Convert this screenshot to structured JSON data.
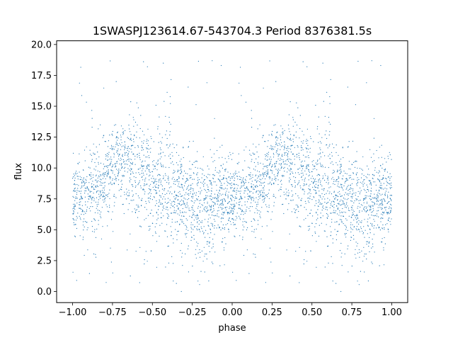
{
  "chart_data": {
    "type": "scatter",
    "title": "1SWASPJ123614.67-543704.3 Period 8376381.5s",
    "xlabel": "phase",
    "ylabel": "flux",
    "xlim": [
      -1.1,
      1.1
    ],
    "ylim": [
      -0.9,
      20.3
    ],
    "xticks": [
      -1.0,
      -0.75,
      -0.5,
      -0.25,
      0.0,
      0.25,
      0.5,
      0.75,
      1.0
    ],
    "xtick_labels": [
      "−1.00",
      "−0.75",
      "−0.50",
      "−0.25",
      "0.00",
      "0.25",
      "0.50",
      "0.75",
      "1.00"
    ],
    "yticks": [
      0.0,
      2.5,
      5.0,
      7.5,
      10.0,
      12.5,
      15.0,
      17.5,
      20.0
    ],
    "ytick_labels": [
      "0.0",
      "2.5",
      "5.0",
      "7.5",
      "10.0",
      "12.5",
      "15.0",
      "17.5",
      "20.0"
    ],
    "grid": false,
    "marker_color": "#1f77b4",
    "series": [
      {
        "profile_phase": [
          -1.0,
          -0.9,
          -0.8,
          -0.7,
          -0.6,
          -0.5,
          -0.4,
          -0.3,
          -0.2,
          -0.1,
          0.0,
          0.1,
          0.2,
          0.3,
          0.4,
          0.5,
          0.6,
          0.7,
          0.8,
          0.9,
          1.0
        ],
        "profile_center": [
          8.0,
          7.8,
          9.0,
          10.5,
          10.0,
          9.0,
          8.2,
          7.5,
          7.0,
          7.2,
          7.5,
          7.8,
          9.0,
          10.5,
          10.0,
          9.0,
          8.2,
          7.5,
          7.0,
          7.2,
          8.0
        ],
        "profile_spread": [
          1.6,
          1.8,
          1.8,
          1.6,
          2.0,
          2.3,
          2.2,
          2.0,
          1.8,
          1.8,
          1.6,
          1.8,
          1.8,
          1.6,
          2.0,
          2.3,
          2.2,
          2.0,
          1.8,
          1.8,
          1.6
        ]
      }
    ]
  }
}
